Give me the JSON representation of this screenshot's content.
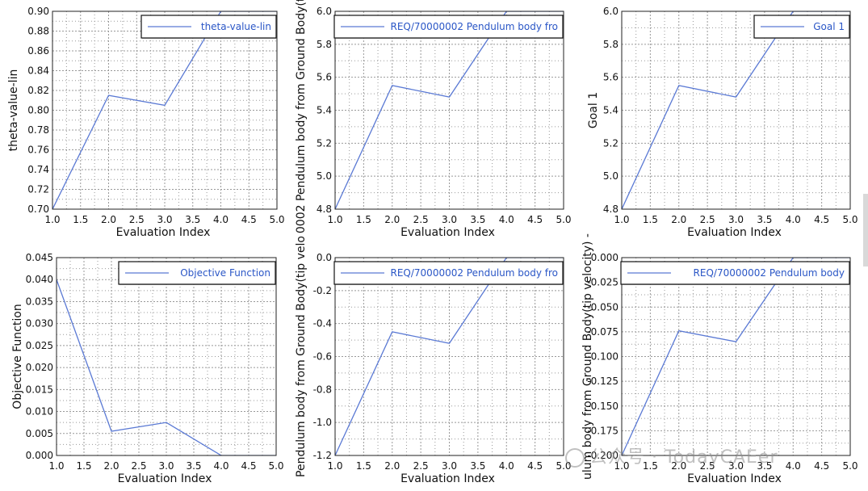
{
  "colors": {
    "line": "#5a79d4",
    "frame": "#222222",
    "grid": "#999999",
    "background": "#ffffff"
  },
  "watermark": {
    "text": "公众号 · TodayCAEer",
    "icon": "wechat-icon"
  },
  "chart_data": [
    {
      "type": "line",
      "xlabel": "Evaluation Index",
      "ylabel": "theta-value-lin",
      "x": [
        1,
        2,
        3,
        4,
        5
      ],
      "series": [
        {
          "name": "theta-value-lin",
          "values": [
            0.7,
            0.815,
            0.805,
            0.9,
            0.9
          ]
        }
      ],
      "xlim": [
        1.0,
        5.0
      ],
      "ylim": [
        0.7,
        0.9
      ],
      "xticks": [
        "1.0",
        "1.5",
        "2.0",
        "2.5",
        "3.0",
        "3.5",
        "4.0",
        "4.5",
        "5.0"
      ],
      "yticks": [
        "0.70",
        "0.72",
        "0.74",
        "0.76",
        "0.78",
        "0.80",
        "0.82",
        "0.84",
        "0.86",
        "0.88",
        "0.90"
      ],
      "grid": true,
      "legend": "top-right"
    },
    {
      "type": "line",
      "xlabel": "Evaluation Index",
      "ylabel": "0002 Pendulum body from Ground Body(tip",
      "x": [
        1,
        2,
        3,
        4,
        5
      ],
      "series": [
        {
          "name": "REQ/70000002 Pendulum body fro",
          "values": [
            4.8,
            5.55,
            5.48,
            6.0,
            6.0
          ]
        }
      ],
      "xlim": [
        1.0,
        5.0
      ],
      "ylim": [
        4.8,
        6.0
      ],
      "xticks": [
        "1.0",
        "1.5",
        "2.0",
        "2.5",
        "3.0",
        "3.5",
        "4.0",
        "4.5",
        "5.0"
      ],
      "yticks": [
        "4.8",
        "5.0",
        "5.2",
        "5.4",
        "5.6",
        "5.8",
        "6.0"
      ],
      "grid": true,
      "legend": "top-right"
    },
    {
      "type": "line",
      "xlabel": "Evaluation Index",
      "ylabel": "Goal 1",
      "x": [
        1,
        2,
        3,
        4,
        5
      ],
      "series": [
        {
          "name": "Goal 1",
          "values": [
            4.8,
            5.55,
            5.48,
            6.0,
            6.0
          ]
        }
      ],
      "xlim": [
        1.0,
        5.0
      ],
      "ylim": [
        4.8,
        6.0
      ],
      "xticks": [
        "1.0",
        "1.5",
        "2.0",
        "2.5",
        "3.0",
        "3.5",
        "4.0",
        "4.5",
        "5.0"
      ],
      "yticks": [
        "4.8",
        "5.0",
        "5.2",
        "5.4",
        "5.6",
        "5.8",
        "6.0"
      ],
      "grid": true,
      "legend": "top-right"
    },
    {
      "type": "line",
      "xlabel": "Evaluation Index",
      "ylabel": "Objective Function",
      "x": [
        1,
        2,
        3,
        4,
        5
      ],
      "series": [
        {
          "name": "Objective Function",
          "values": [
            0.04,
            0.0055,
            0.0075,
            0.0,
            0.0
          ]
        }
      ],
      "xlim": [
        1.0,
        5.0
      ],
      "ylim": [
        0.0,
        0.045
      ],
      "xticks": [
        "1.0",
        "1.5",
        "2.0",
        "2.5",
        "3.0",
        "3.5",
        "4.0",
        "4.5",
        "5.0"
      ],
      "yticks": [
        "0.000",
        "0.005",
        "0.010",
        "0.015",
        "0.020",
        "0.025",
        "0.030",
        "0.035",
        "0.040",
        "0.045"
      ],
      "grid": true,
      "legend": "top-right"
    },
    {
      "type": "line",
      "xlabel": "Evaluation Index",
      "ylabel": "Pendulum body from Ground Body(tip velo",
      "x": [
        1,
        2,
        3,
        4,
        5
      ],
      "series": [
        {
          "name": "REQ/70000002 Pendulum body fro",
          "values": [
            -1.2,
            -0.45,
            -0.52,
            0.0,
            0.0
          ]
        }
      ],
      "xlim": [
        1.0,
        5.0
      ],
      "ylim": [
        -1.2,
        0.0
      ],
      "xticks": [
        "1.0",
        "1.5",
        "2.0",
        "2.5",
        "3.0",
        "3.5",
        "4.0",
        "4.5",
        "5.0"
      ],
      "yticks": [
        "-1.2",
        "-1.0",
        "-0.8",
        "-0.6",
        "-0.4",
        "-0.2",
        "0.0"
      ],
      "grid": true,
      "legend": "top-right"
    },
    {
      "type": "line",
      "xlabel": "Evaluation Index",
      "ylabel": "ulum body from Ground Body(tip velocity) -",
      "x": [
        1,
        2,
        3,
        4,
        5
      ],
      "series": [
        {
          "name": "REQ/70000002 Pendulum body",
          "values": [
            -0.2,
            -0.074,
            -0.085,
            0.0,
            0.0
          ]
        }
      ],
      "xlim": [
        1.0,
        5.0
      ],
      "ylim": [
        -0.2,
        0.0
      ],
      "xticks": [
        "1.0",
        "1.5",
        "2.0",
        "2.5",
        "3.0",
        "3.5",
        "4.0",
        "4.5",
        "5.0"
      ],
      "yticks": [
        "-0.200",
        "-0.175",
        "-0.150",
        "-0.125",
        "-0.100",
        "-0.075",
        "-0.050",
        "-0.025",
        "0.000"
      ],
      "grid": true,
      "legend": "top-right"
    }
  ]
}
